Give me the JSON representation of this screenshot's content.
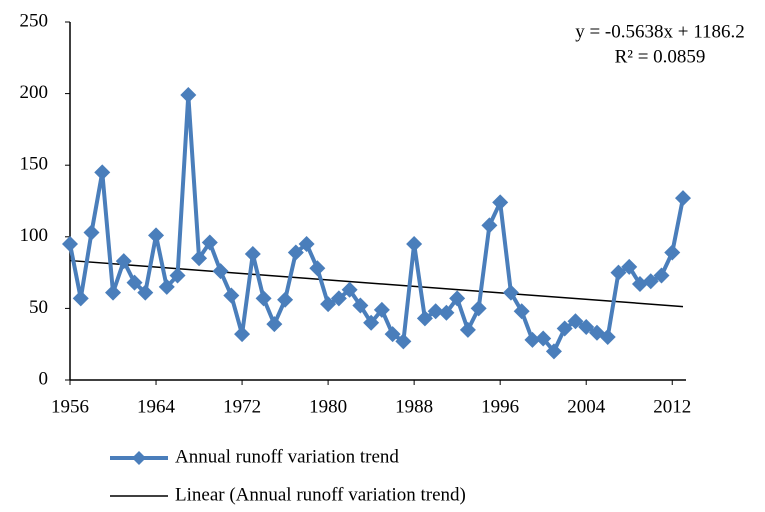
{
  "chart_data": {
    "type": "line",
    "x": [
      1956,
      1957,
      1958,
      1959,
      1960,
      1961,
      1962,
      1963,
      1964,
      1965,
      1966,
      1967,
      1968,
      1969,
      1970,
      1971,
      1972,
      1973,
      1974,
      1975,
      1976,
      1977,
      1978,
      1979,
      1980,
      1981,
      1982,
      1983,
      1984,
      1985,
      1986,
      1987,
      1988,
      1989,
      1990,
      1991,
      1992,
      1993,
      1994,
      1995,
      1996,
      1997,
      1998,
      1999,
      2000,
      2001,
      2002,
      2003,
      2004,
      2005,
      2006,
      2007,
      2008,
      2009,
      2010,
      2011,
      2012,
      2013
    ],
    "series": [
      {
        "name": "Annual runoff variation trend",
        "color": "#4a7ebb",
        "values": [
          95,
          57,
          103,
          145,
          61,
          83,
          68,
          61,
          101,
          65,
          73,
          199,
          85,
          96,
          76,
          59,
          32,
          88,
          57,
          39,
          56,
          89,
          95,
          78,
          53,
          57,
          63,
          52,
          40,
          49,
          32,
          27,
          95,
          43,
          48,
          47,
          57,
          35,
          50,
          108,
          124,
          61,
          48,
          28,
          29,
          20,
          36,
          41,
          37,
          33,
          30,
          75,
          79,
          67,
          69,
          73,
          89,
          127
        ]
      }
    ],
    "trendline": {
      "name": "Linear (Annual runoff variation trend)",
      "color": "#000000",
      "slope": -0.5638,
      "intercept": 1186.2,
      "equation": "y = -0.5638x + 1186.2",
      "r2_label": "R² = 0.0859"
    },
    "xlim": [
      1956,
      2013
    ],
    "xticks": [
      1956,
      1964,
      1972,
      1980,
      1988,
      1996,
      2004,
      2012
    ],
    "ylim": [
      0,
      250
    ],
    "yticks": [
      0,
      50,
      100,
      150,
      200,
      250
    ]
  }
}
